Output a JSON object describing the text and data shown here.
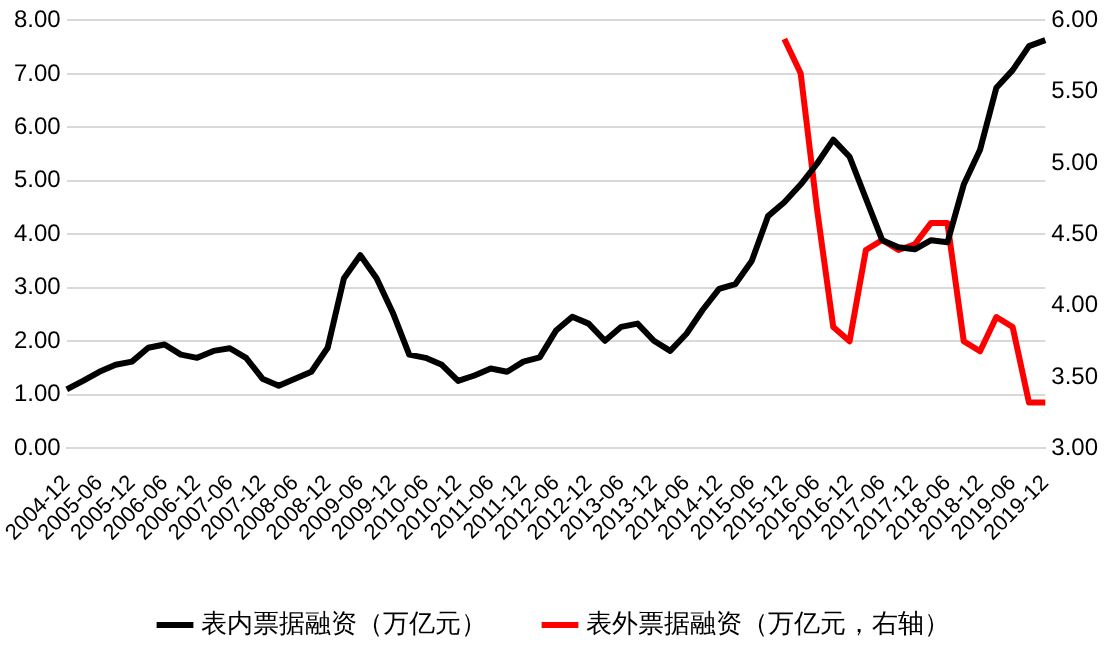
{
  "chart_data": {
    "type": "line",
    "categories": [
      "2004-12",
      null,
      "2005-06",
      null,
      "2005-12",
      null,
      "2006-06",
      null,
      "2006-12",
      null,
      "2007-06",
      null,
      "2007-12",
      null,
      "2008-06",
      null,
      "2008-12",
      null,
      "2009-06",
      null,
      "2009-12",
      null,
      "2010-06",
      null,
      "2010-12",
      null,
      "2011-06",
      null,
      "2011-12",
      null,
      "2012-06",
      null,
      "2012-12",
      null,
      "2013-06",
      null,
      "2013-12",
      null,
      "2014-06",
      null,
      "2014-12",
      null,
      "2015-06",
      null,
      "2015-12",
      null,
      "2016-06",
      null,
      "2016-12",
      null,
      "2017-06",
      null,
      "2017-12",
      null,
      "2018-06",
      null,
      "2018-12",
      null,
      "2019-06",
      null,
      "2019-12"
    ],
    "series": [
      {
        "name": "表内票据融资（万亿元）",
        "color": "#000000",
        "values": [
          1.1,
          1.26,
          1.43,
          1.56,
          1.62,
          1.88,
          1.94,
          1.75,
          1.69,
          1.82,
          1.87,
          1.69,
          1.3,
          1.17,
          1.3,
          1.43,
          1.88,
          3.18,
          3.61,
          3.18,
          2.53,
          1.75,
          1.69,
          1.56,
          1.26,
          1.36,
          1.49,
          1.43,
          1.62,
          1.7,
          2.2,
          2.46,
          2.33,
          2.01,
          2.27,
          2.33,
          2.01,
          1.82,
          2.14,
          2.59,
          2.98,
          3.07,
          3.5,
          4.34,
          4.6,
          4.93,
          5.32,
          5.77,
          5.45,
          4.67,
          3.89,
          3.76,
          3.72,
          3.89,
          3.85,
          4.93,
          5.58,
          6.74,
          7.07,
          7.52,
          7.63
        ]
      },
      {
        "name": "表外票据融资（万亿元，右轴）",
        "color": "#ff0000",
        "axis": "y2",
        "values": [
          null,
          null,
          null,
          null,
          null,
          null,
          null,
          null,
          null,
          null,
          null,
          null,
          null,
          null,
          null,
          null,
          null,
          null,
          null,
          null,
          null,
          null,
          null,
          null,
          null,
          null,
          null,
          null,
          null,
          null,
          null,
          null,
          null,
          null,
          null,
          null,
          null,
          null,
          null,
          null,
          null,
          null,
          null,
          null,
          5.87,
          5.63,
          4.68,
          3.85,
          3.75,
          4.39,
          4.46,
          4.39,
          4.43,
          4.58,
          4.58,
          3.75,
          3.68,
          3.92,
          3.85,
          3.32,
          3.32
        ]
      }
    ],
    "ylim": [
      0,
      8
    ],
    "yticks": [
      {
        "value": 0,
        "label": "0.00"
      },
      {
        "value": 1,
        "label": "1.00"
      },
      {
        "value": 2,
        "label": "2.00"
      },
      {
        "value": 3,
        "label": "3.00"
      },
      {
        "value": 4,
        "label": "4.00"
      },
      {
        "value": 5,
        "label": "5.00"
      },
      {
        "value": 6,
        "label": "6.00"
      },
      {
        "value": 7,
        "label": "7.00"
      },
      {
        "value": 8,
        "label": "8.00"
      }
    ],
    "y2lim": [
      3,
      6
    ],
    "y2ticks": [
      {
        "value": 3,
        "label": "3.00"
      },
      {
        "value": 3.5,
        "label": "3.50"
      },
      {
        "value": 4,
        "label": "4.00"
      },
      {
        "value": 4.5,
        "label": "4.50"
      },
      {
        "value": 5,
        "label": "5.00"
      },
      {
        "value": 5.5,
        "label": "5.50"
      },
      {
        "value": 6,
        "label": "6.00"
      }
    ],
    "grid": "y",
    "legend": "bottom",
    "marker": "none",
    "line_style": "solid"
  }
}
